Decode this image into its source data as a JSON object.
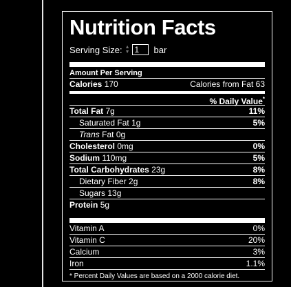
{
  "title": "Nutrition Facts",
  "serving": {
    "label": "Serving Size:",
    "value": "1",
    "unit": "bar"
  },
  "amount_per_serving": "Amount Per Serving",
  "calories": {
    "label": "Calories",
    "value": "170",
    "fat_label": "Calories from Fat",
    "fat_value": "63"
  },
  "dv_header": "% Daily Value",
  "dv_mark": "*",
  "nutrients": {
    "total_fat": {
      "label": "Total Fat",
      "amount": "7g",
      "dv": "11%"
    },
    "saturated_fat": {
      "label": "Saturated Fat",
      "amount": "1g",
      "dv": "5%"
    },
    "trans_fat": {
      "label_italic": "Trans",
      "label": "Fat",
      "amount": "0g"
    },
    "cholesterol": {
      "label": "Cholesterol",
      "amount": "0mg",
      "dv": "0%"
    },
    "sodium": {
      "label": "Sodium",
      "amount": "110mg",
      "dv": "5%"
    },
    "carbs": {
      "label": "Total Carbohydrates",
      "amount": "23g",
      "dv": "8%"
    },
    "fiber": {
      "label": "Dietary Fiber",
      "amount": "2g",
      "dv": "8%"
    },
    "sugars": {
      "label": "Sugars",
      "amount": "13g"
    },
    "protein": {
      "label": "Protein",
      "amount": "5g"
    }
  },
  "vitamins": [
    {
      "label": "Vitamin A",
      "dv": "0%"
    },
    {
      "label": "Vitamin C",
      "dv": "20%"
    },
    {
      "label": "Calcium",
      "dv": "3%"
    },
    {
      "label": "Iron",
      "dv": "1.1%"
    }
  ],
  "footnote": "* Percent Daily Values are based on a 2000 calorie diet.",
  "colors": {
    "background": "#000000",
    "foreground": "#ffffff"
  }
}
